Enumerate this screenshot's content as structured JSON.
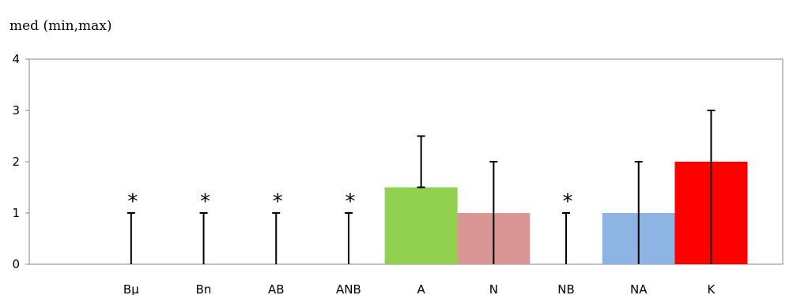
{
  "chart_data": {
    "type": "bar",
    "title": "",
    "xlabel": "",
    "ylabel": "med (min,max)",
    "ylim": [
      0,
      4
    ],
    "yticks": [
      "0",
      "1",
      "2",
      "3",
      "4"
    ],
    "grid": false,
    "legend": "none",
    "categories": [
      "Bμ",
      "Bn",
      "AB",
      "ANB",
      "A",
      "N",
      "NB",
      "NA",
      "K"
    ],
    "values": [
      0,
      0,
      0,
      0,
      1.5,
      1,
      0,
      1,
      2
    ],
    "error_max": [
      1,
      1,
      1,
      1,
      2.5,
      2,
      1,
      2,
      3
    ],
    "error_min": [
      0,
      0,
      0,
      0,
      1.5,
      0,
      0,
      0,
      0
    ],
    "bar_colors": [
      "#ffffff",
      "#ffffff",
      "#ffffff",
      "#ffffff",
      "#92d050",
      "#da9694",
      "#ffffff",
      "#8db4e2",
      "#ff0000"
    ],
    "annotations": [
      "*",
      "*",
      "*",
      "*",
      "",
      "",
      "*",
      "",
      ""
    ]
  }
}
